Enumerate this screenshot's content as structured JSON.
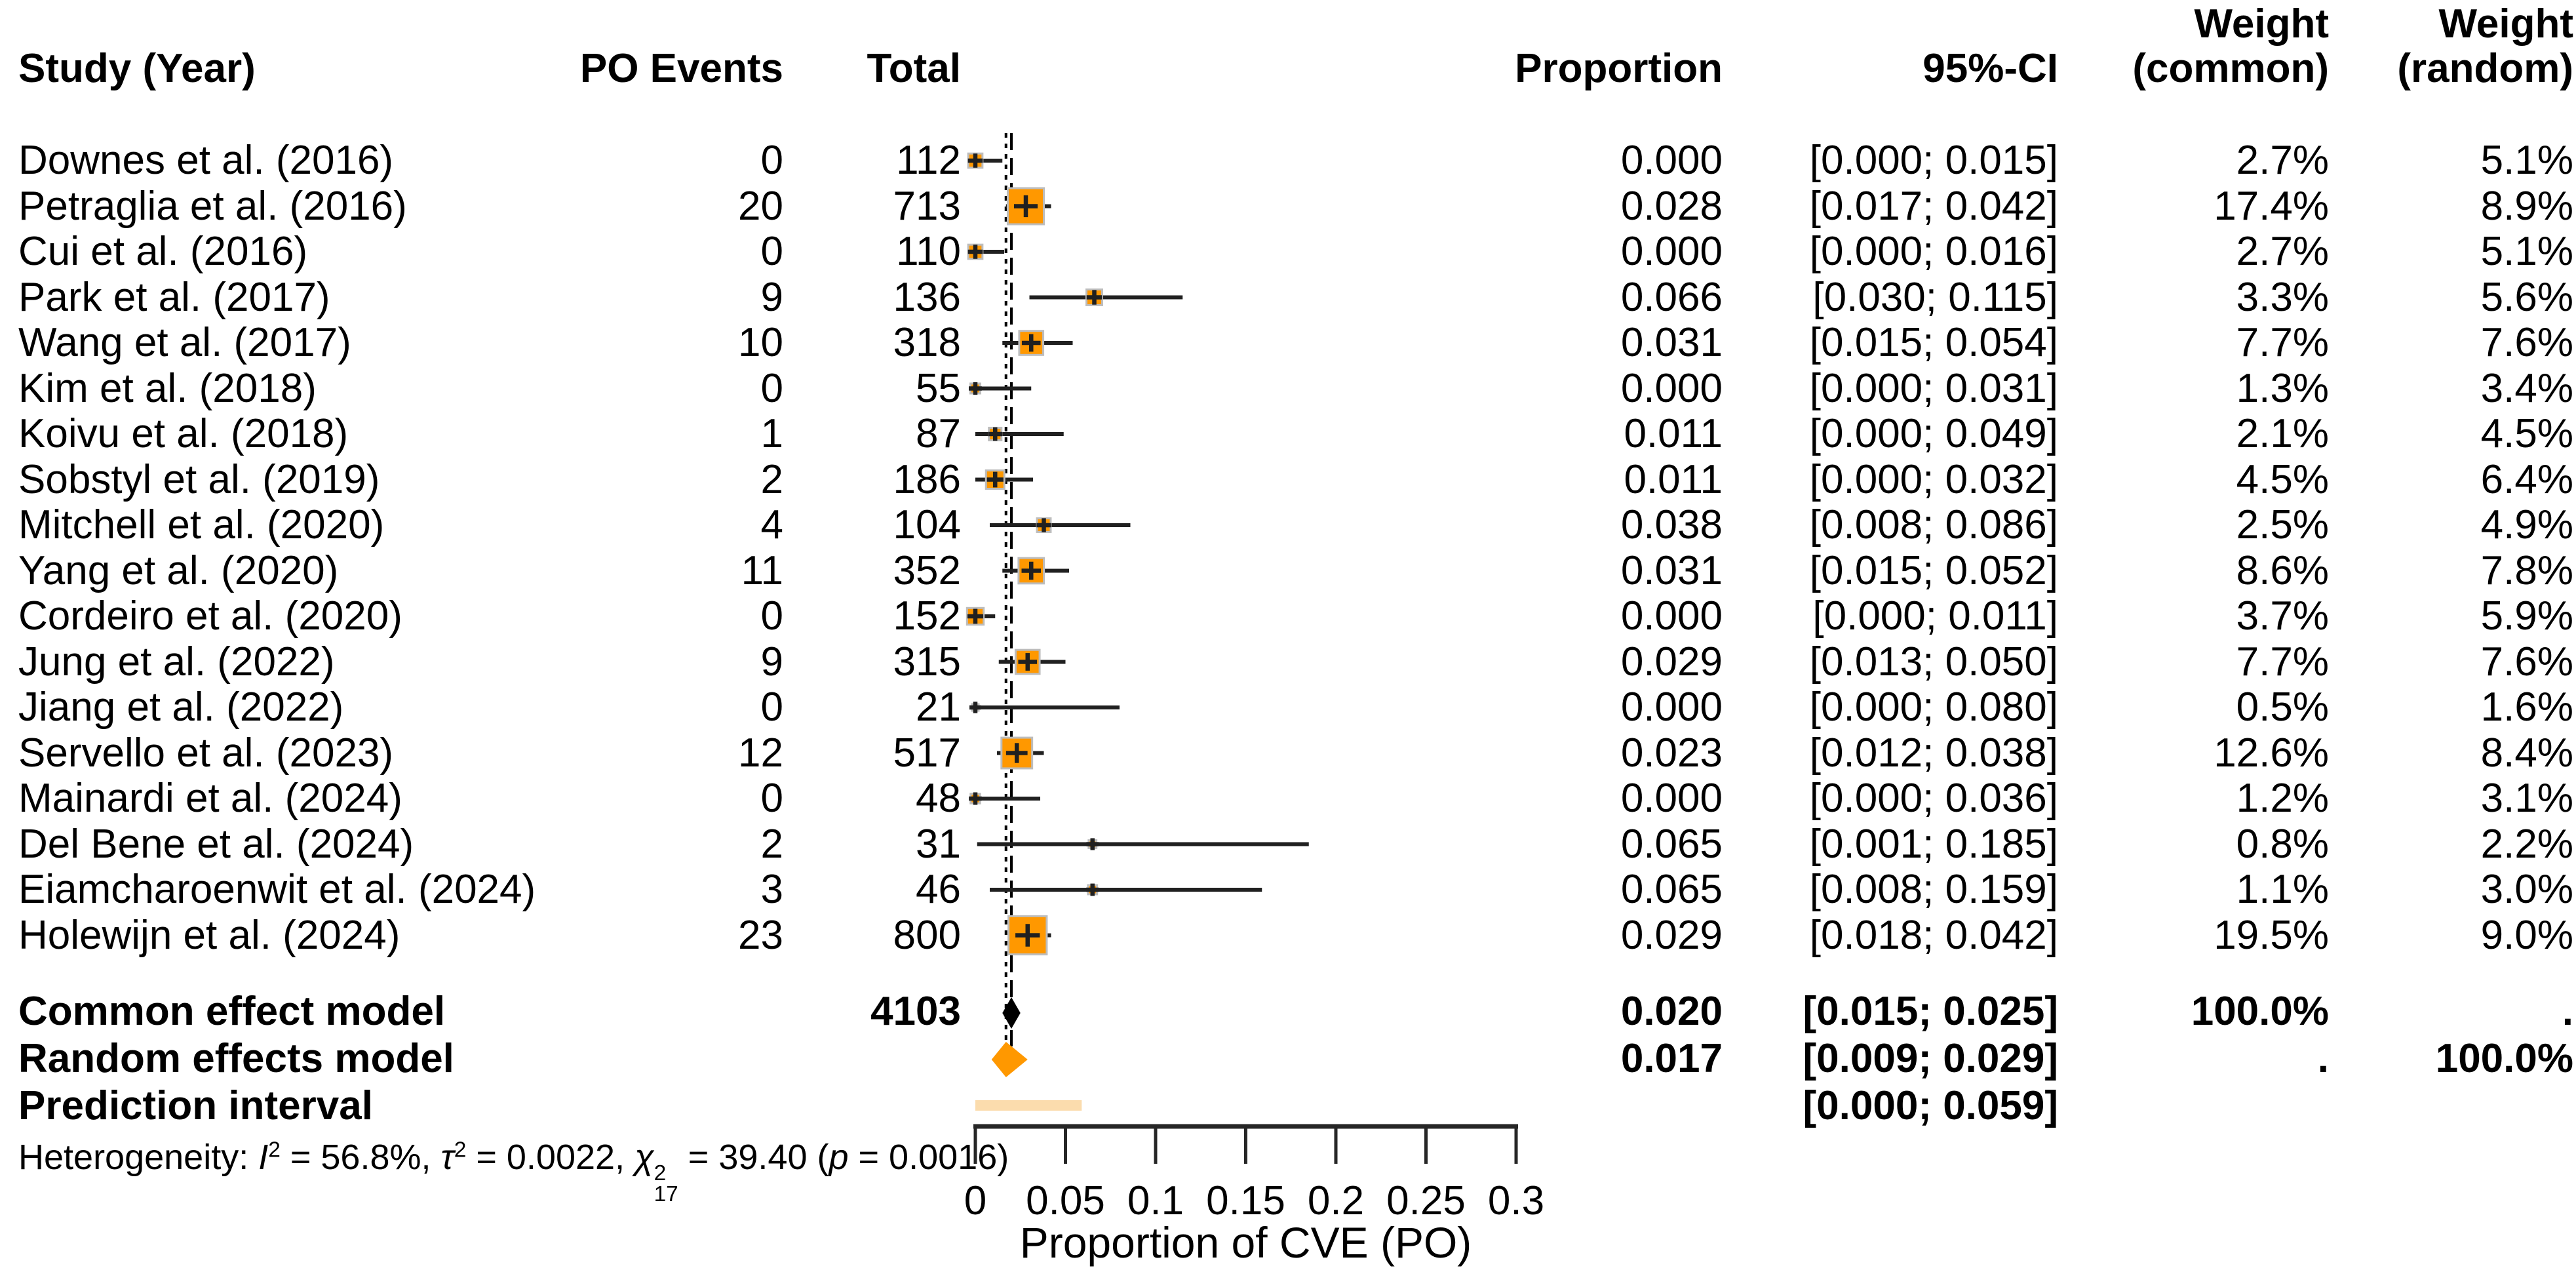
{
  "header": {
    "study": "Study (Year)",
    "po_events": "PO Events",
    "total": "Total",
    "proportion": "Proportion",
    "ci": "95%-CI",
    "weight": "Weight",
    "weight_common": "(common)",
    "weight_random": "(random)"
  },
  "heterogeneity": {
    "prefix": "Heterogeneity: ",
    "i": "I",
    "i_sup": "2",
    "i_rest": " = 56.8%, ",
    "tau": "τ",
    "tau_sup": "2",
    "tau_rest": " = 0.0022, ",
    "chi": "χ",
    "chi_sup": "2",
    "chi_sub": "17",
    "chi_rest": " = 39.40 (",
    "p": "p",
    "p_rest": " = 0.0016)"
  },
  "axis": {
    "label": "Proportion of CVE (PO)",
    "ticks": [
      "0",
      "0.05",
      "0.1",
      "0.15",
      "0.2",
      "0.25",
      "0.3"
    ],
    "tick_values": [
      0,
      0.05,
      0.1,
      0.15,
      0.2,
      0.25,
      0.3
    ],
    "min": 0,
    "max": 0.3
  },
  "colors": {
    "marker_orange": "#FF9800",
    "marker_border": "#BDBDBD",
    "prediction_bar": "#FBDCAD",
    "common_diamond": "#000000",
    "ci_line": "#202020",
    "axis": "#262626",
    "reference_line": "#000000",
    "text": "#000000"
  },
  "chart_data": {
    "type": "scatter",
    "subtype": "forest-plot-meta-analysis-of-proportions",
    "xlabel": "Proportion of CVE (PO)",
    "xlim": [
      0,
      0.3
    ],
    "x_ticks": [
      0,
      0.05,
      0.1,
      0.15,
      0.2,
      0.25,
      0.3
    ],
    "grid": false,
    "legend": false,
    "studies": [
      {
        "label": "Downes et al. (2016)",
        "po_events": "0",
        "total": "112",
        "proportion": "0.000",
        "ci": "[0.000; 0.015]",
        "weight_common": "2.7%",
        "weight_random": "5.1%",
        "est": 0.0,
        "lo": 0.0,
        "hi": 0.015,
        "wc": 2.7
      },
      {
        "label": "Petraglia et al. (2016)",
        "po_events": "20",
        "total": "713",
        "proportion": "0.028",
        "ci": "[0.017; 0.042]",
        "weight_common": "17.4%",
        "weight_random": "8.9%",
        "est": 0.028,
        "lo": 0.017,
        "hi": 0.042,
        "wc": 17.4
      },
      {
        "label": "Cui et al. (2016)",
        "po_events": "0",
        "total": "110",
        "proportion": "0.000",
        "ci": "[0.000; 0.016]",
        "weight_common": "2.7%",
        "weight_random": "5.1%",
        "est": 0.0,
        "lo": 0.0,
        "hi": 0.016,
        "wc": 2.7
      },
      {
        "label": "Park et al. (2017)",
        "po_events": "9",
        "total": "136",
        "proportion": "0.066",
        "ci": "[0.030; 0.115]",
        "weight_common": "3.3%",
        "weight_random": "5.6%",
        "est": 0.066,
        "lo": 0.03,
        "hi": 0.115,
        "wc": 3.3
      },
      {
        "label": "Wang et al. (2017)",
        "po_events": "10",
        "total": "318",
        "proportion": "0.031",
        "ci": "[0.015; 0.054]",
        "weight_common": "7.7%",
        "weight_random": "7.6%",
        "est": 0.031,
        "lo": 0.015,
        "hi": 0.054,
        "wc": 7.7
      },
      {
        "label": "Kim et al. (2018)",
        "po_events": "0",
        "total": "55",
        "proportion": "0.000",
        "ci": "[0.000; 0.031]",
        "weight_common": "1.3%",
        "weight_random": "3.4%",
        "est": 0.0,
        "lo": 0.0,
        "hi": 0.031,
        "wc": 1.3
      },
      {
        "label": "Koivu et al. (2018)",
        "po_events": "1",
        "total": "87",
        "proportion": "0.011",
        "ci": "[0.000; 0.049]",
        "weight_common": "2.1%",
        "weight_random": "4.5%",
        "est": 0.011,
        "lo": 0.0,
        "hi": 0.049,
        "wc": 2.1
      },
      {
        "label": "Sobstyl et al. (2019)",
        "po_events": "2",
        "total": "186",
        "proportion": "0.011",
        "ci": "[0.000; 0.032]",
        "weight_common": "4.5%",
        "weight_random": "6.4%",
        "est": 0.011,
        "lo": 0.0,
        "hi": 0.032,
        "wc": 4.5
      },
      {
        "label": "Mitchell et al. (2020)",
        "po_events": "4",
        "total": "104",
        "proportion": "0.038",
        "ci": "[0.008; 0.086]",
        "weight_common": "2.5%",
        "weight_random": "4.9%",
        "est": 0.038,
        "lo": 0.008,
        "hi": 0.086,
        "wc": 2.5
      },
      {
        "label": "Yang et al. (2020)",
        "po_events": "11",
        "total": "352",
        "proportion": "0.031",
        "ci": "[0.015; 0.052]",
        "weight_common": "8.6%",
        "weight_random": "7.8%",
        "est": 0.031,
        "lo": 0.015,
        "hi": 0.052,
        "wc": 8.6
      },
      {
        "label": "Cordeiro et al. (2020)",
        "po_events": "0",
        "total": "152",
        "proportion": "0.000",
        "ci": "[0.000; 0.011]",
        "weight_common": "3.7%",
        "weight_random": "5.9%",
        "est": 0.0,
        "lo": 0.0,
        "hi": 0.011,
        "wc": 3.7
      },
      {
        "label": "Jung et al. (2022)",
        "po_events": "9",
        "total": "315",
        "proportion": "0.029",
        "ci": "[0.013; 0.050]",
        "weight_common": "7.7%",
        "weight_random": "7.6%",
        "est": 0.029,
        "lo": 0.013,
        "hi": 0.05,
        "wc": 7.7
      },
      {
        "label": "Jiang et al. (2022)",
        "po_events": "0",
        "total": "21",
        "proportion": "0.000",
        "ci": "[0.000; 0.080]",
        "weight_common": "0.5%",
        "weight_random": "1.6%",
        "est": 0.0,
        "lo": 0.0,
        "hi": 0.08,
        "wc": 0.5
      },
      {
        "label": "Servello et al. (2023)",
        "po_events": "12",
        "total": "517",
        "proportion": "0.023",
        "ci": "[0.012; 0.038]",
        "weight_common": "12.6%",
        "weight_random": "8.4%",
        "est": 0.023,
        "lo": 0.012,
        "hi": 0.038,
        "wc": 12.6
      },
      {
        "label": "Mainardi et al. (2024)",
        "po_events": "0",
        "total": "48",
        "proportion": "0.000",
        "ci": "[0.000; 0.036]",
        "weight_common": "1.2%",
        "weight_random": "3.1%",
        "est": 0.0,
        "lo": 0.0,
        "hi": 0.036,
        "wc": 1.2
      },
      {
        "label": "Del Bene et al. (2024)",
        "po_events": "2",
        "total": "31",
        "proportion": "0.065",
        "ci": "[0.001; 0.185]",
        "weight_common": "0.8%",
        "weight_random": "2.2%",
        "est": 0.065,
        "lo": 0.001,
        "hi": 0.185,
        "wc": 0.8
      },
      {
        "label": "Eiamcharoenwit et al. (2024)",
        "po_events": "3",
        "total": "46",
        "proportion": "0.065",
        "ci": "[0.008; 0.159]",
        "weight_common": "1.1%",
        "weight_random": "3.0%",
        "est": 0.065,
        "lo": 0.008,
        "hi": 0.159,
        "wc": 1.1
      },
      {
        "label": "Holewijn et al. (2024)",
        "po_events": "23",
        "total": "800",
        "proportion": "0.029",
        "ci": "[0.018; 0.042]",
        "weight_common": "19.5%",
        "weight_random": "9.0%",
        "est": 0.029,
        "lo": 0.018,
        "hi": 0.042,
        "wc": 19.5
      }
    ],
    "summary": {
      "common": {
        "label": "Common effect model",
        "total": "4103",
        "proportion": "0.020",
        "ci": "[0.015; 0.025]",
        "weight_common": "100.0%",
        "weight_random": ".",
        "est": 0.02,
        "lo": 0.015,
        "hi": 0.025
      },
      "random": {
        "label": "Random effects model",
        "proportion": "0.017",
        "ci": "[0.009; 0.029]",
        "weight_common": ".",
        "weight_random": "100.0%",
        "est": 0.017,
        "lo": 0.009,
        "hi": 0.029
      },
      "prediction": {
        "label": "Prediction interval",
        "ci": "[0.000; 0.059]",
        "lo": 0.0,
        "hi": 0.059
      }
    }
  }
}
